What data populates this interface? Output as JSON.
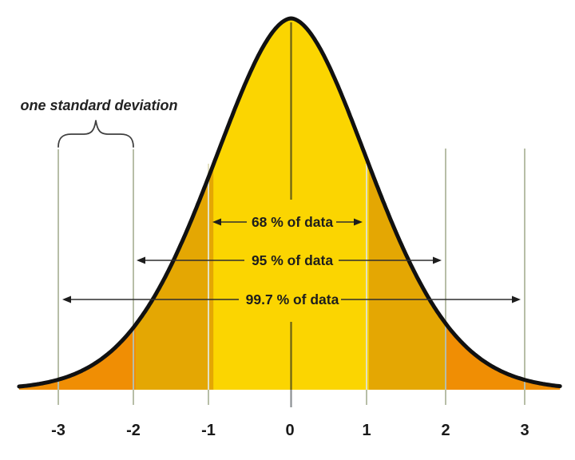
{
  "chart_data": {
    "type": "area",
    "title": "",
    "distribution": "normal (gaussian) probability density",
    "mean": 0,
    "std_dev": 1,
    "x_ticks": [
      -3,
      -2,
      -1,
      0,
      1,
      2,
      3
    ],
    "x_tick_labels": [
      "-3",
      "-2",
      "-1",
      "0",
      "1",
      "2",
      "3"
    ],
    "xlim": [
      -3.5,
      3.5
    ],
    "grid": false,
    "legend": "none",
    "curve_color": "#111111",
    "background_color": "#ffffff",
    "sigma_guide_line_color": "#b7bea7",
    "bands": [
      {
        "range_sigma": [
          -1,
          1
        ],
        "percent": 68,
        "coverage_label": "68 % of data",
        "fill": "#fbd501"
      },
      {
        "range_sigma": [
          -2,
          2
        ],
        "percent": 95,
        "coverage_label": "95 % of data",
        "fill": "#e4a703"
      },
      {
        "range_sigma": [
          -3,
          3
        ],
        "percent": 99.7,
        "coverage_label": "99.7 % of data",
        "fill": "#f08e04"
      }
    ],
    "annotations": [
      {
        "label": "one standard deviation",
        "from_sigma": -3,
        "to_sigma": -2
      }
    ]
  }
}
